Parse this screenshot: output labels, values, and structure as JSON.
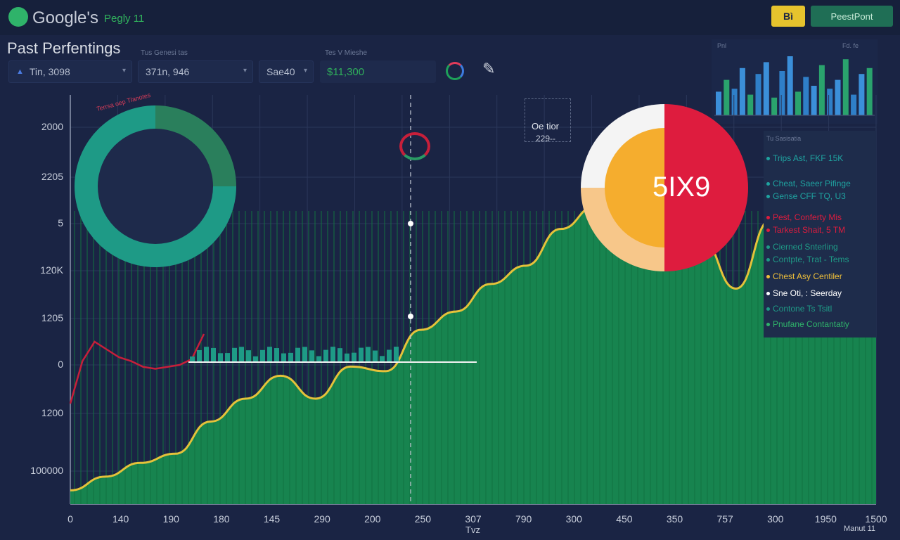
{
  "header": {
    "app_title": "Google's",
    "app_subtitle": "Pegly 11",
    "btn_primary": "Bì",
    "btn_secondary": "PeestPont"
  },
  "toolbar": {
    "page_title": "Past Perfentings",
    "filter_label_1": "Tus Genesi tas",
    "filter_label_2": "Tes V Mieshe",
    "dropdown_1": "Tin, 3098",
    "dropdown_2": "371n, 946",
    "dropdown_3": "Sae40",
    "value_field": "$11,300"
  },
  "mini_chart": {
    "label_left": "Pnl",
    "label_right": "Fd. fe",
    "values": [
      8,
      12,
      9,
      16,
      7,
      14,
      18,
      6,
      15,
      20,
      8,
      13,
      10,
      17,
      9,
      12,
      19,
      7,
      14,
      16
    ]
  },
  "main_chart": {
    "y_ticks": [
      "2000",
      "2205",
      "5",
      "120K",
      "1205",
      "0",
      "1200",
      "100000"
    ],
    "x_ticks": [
      "0",
      "140",
      "190",
      "180",
      "145",
      "290",
      "200",
      "250",
      "307",
      "790",
      "300",
      "450",
      "350",
      "757",
      "300",
      "1950",
      "1500"
    ],
    "x_title": "Tvz",
    "x_corner": "Manut 11",
    "donut_caption": "Terrsa oep Tlanotes",
    "pie_label": "5IX9",
    "file_title": "Oe tior",
    "file_value": "229--"
  },
  "chart_data": {
    "type": "area",
    "title": "",
    "xlabel": "Tvz",
    "ylabel": "",
    "series": [
      {
        "name": "",
        "values": [
          30,
          60,
          90,
          110,
          180,
          230,
          280,
          230,
          300,
          290,
          380,
          420,
          480,
          520,
          600,
          650,
          720,
          810,
          580,
          470,
          620,
          580,
          460,
          500
        ]
      },
      {
        "name": "",
        "values": [
          120,
          230,
          280,
          260,
          240,
          230,
          215,
          210,
          215,
          220,
          235,
          300
        ]
      }
    ]
  },
  "side_legend": {
    "header": "Tu Sasisatia",
    "items": [
      {
        "text": "Trips Ast, FKF 15K",
        "color": "#1fa3a0"
      },
      {
        "text": "Cheat, Saeer Pifinge",
        "color": "#1fa3a0"
      },
      {
        "text": "Gense CFF TQ, U3",
        "color": "#1fa3a0"
      },
      {
        "text": "Pest, Conferty Mis",
        "color": "#de1c3e"
      },
      {
        "text": "Tarkest Shait, 5 TM",
        "color": "#de1c3e"
      },
      {
        "text": "Cierned Snterling",
        "color": "#1e9a86"
      },
      {
        "text": "Contpte, Trat - Tems",
        "color": "#1e9a86"
      },
      {
        "text": "Chest Asy Centiler",
        "color": "#f0c03a"
      },
      {
        "text": "Sne Oti, : Seerday",
        "color": "#ffffff"
      },
      {
        "text": "Contone Ts Tsitl",
        "color": "#1e9a86"
      },
      {
        "text": "Pnufane Contantatiy",
        "color": "#2fb36a"
      }
    ]
  },
  "colors": {
    "background": "#1a2444",
    "area_fill": "#17844f",
    "area_line": "#e4c23a",
    "red_line": "#c71f3a",
    "accent_yellow": "#e6c32d"
  }
}
